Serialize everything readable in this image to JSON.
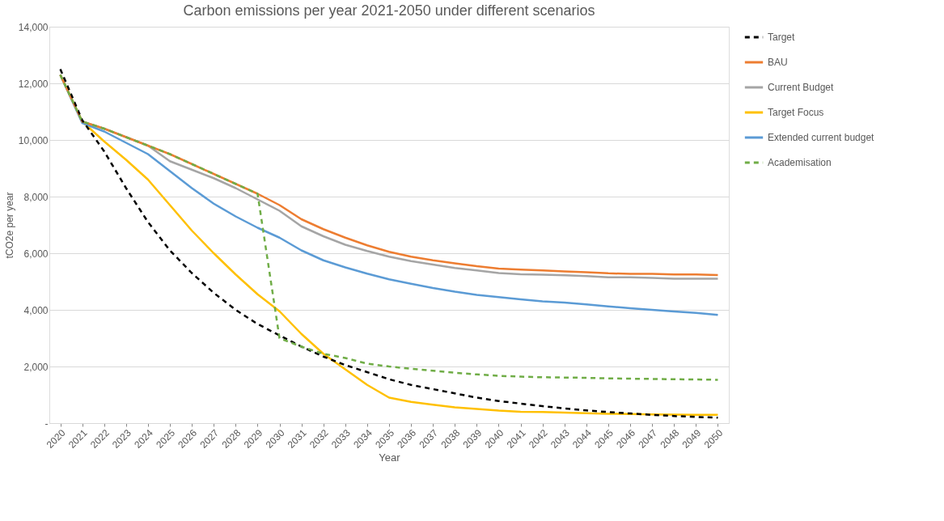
{
  "chart_data": {
    "type": "line",
    "title": "Carbon emissions per year 2021-2050 under different scenarios",
    "xlabel": "Year",
    "ylabel": "tCO2e per year",
    "categories": [
      "2020",
      "2021",
      "2022",
      "2023",
      "2024",
      "2025",
      "2026",
      "2027",
      "2028",
      "2029",
      "2030",
      "2031",
      "2032",
      "2033",
      "2034",
      "2035",
      "2036",
      "2037",
      "2038",
      "2039",
      "2040",
      "2041",
      "2042",
      "2043",
      "2044",
      "2045",
      "2046",
      "2047",
      "2048",
      "2049",
      "2050"
    ],
    "ylim": [
      0,
      14000
    ],
    "yticks": [
      {
        "value": 0,
        "label": "-"
      },
      {
        "value": 2000,
        "label": "2,000"
      },
      {
        "value": 4000,
        "label": "4,000"
      },
      {
        "value": 6000,
        "label": "6,000"
      },
      {
        "value": 8000,
        "label": "8,000"
      },
      {
        "value": 10000,
        "label": "10,000"
      },
      {
        "value": 12000,
        "label": "12,000"
      },
      {
        "value": 14000,
        "label": "14,000"
      }
    ],
    "grid": "y",
    "legend": "right",
    "marker": "none",
    "series": [
      {
        "name": "Target",
        "color": "#000000",
        "line_style": "dashed",
        "values": [
          12500,
          10700,
          9600,
          8300,
          7100,
          6100,
          5300,
          4600,
          4000,
          3500,
          3100,
          2700,
          2350,
          2050,
          1800,
          1550,
          1350,
          1200,
          1050,
          900,
          780,
          690,
          600,
          520,
          450,
          390,
          340,
          290,
          250,
          220,
          190
        ]
      },
      {
        "name": "BAU",
        "color": "#ed7d31",
        "line_style": "solid",
        "values": [
          12300,
          10650,
          10400,
          10100,
          9800,
          9500,
          9150,
          8800,
          8450,
          8100,
          7700,
          7200,
          6850,
          6550,
          6280,
          6050,
          5880,
          5750,
          5640,
          5540,
          5460,
          5420,
          5390,
          5360,
          5330,
          5290,
          5270,
          5270,
          5250,
          5250,
          5230
        ]
      },
      {
        "name": "Current Budget",
        "color": "#a5a5a5",
        "line_style": "solid",
        "values": [
          12300,
          10650,
          10400,
          10100,
          9800,
          9250,
          8950,
          8650,
          8300,
          7900,
          7500,
          6950,
          6600,
          6300,
          6080,
          5880,
          5720,
          5600,
          5480,
          5390,
          5300,
          5260,
          5240,
          5220,
          5190,
          5150,
          5150,
          5130,
          5100,
          5100,
          5100
        ]
      },
      {
        "name": "Target Focus",
        "color": "#ffc000",
        "line_style": "solid",
        "values": [
          12300,
          10650,
          9950,
          9300,
          8600,
          7700,
          6800,
          6000,
          5250,
          4550,
          3950,
          3150,
          2450,
          1900,
          1350,
          900,
          750,
          650,
          560,
          500,
          440,
          400,
          390,
          370,
          350,
          330,
          320,
          310,
          300,
          290,
          290
        ]
      },
      {
        "name": "Extended current budget",
        "color": "#5b9bd5",
        "line_style": "solid",
        "values": [
          12300,
          10600,
          10300,
          9900,
          9500,
          8900,
          8300,
          7750,
          7300,
          6900,
          6550,
          6100,
          5750,
          5500,
          5280,
          5080,
          4920,
          4770,
          4640,
          4530,
          4450,
          4370,
          4300,
          4260,
          4190,
          4120,
          4060,
          4000,
          3940,
          3890,
          3820
        ]
      },
      {
        "name": "Academisation",
        "color": "#70ad47",
        "line_style": "dashed",
        "values": [
          12300,
          10650,
          10400,
          10100,
          9800,
          9500,
          9150,
          8800,
          8450,
          8100,
          3000,
          2700,
          2450,
          2300,
          2100,
          2000,
          1920,
          1850,
          1780,
          1720,
          1670,
          1640,
          1620,
          1610,
          1600,
          1580,
          1570,
          1560,
          1550,
          1540,
          1530
        ]
      }
    ]
  }
}
